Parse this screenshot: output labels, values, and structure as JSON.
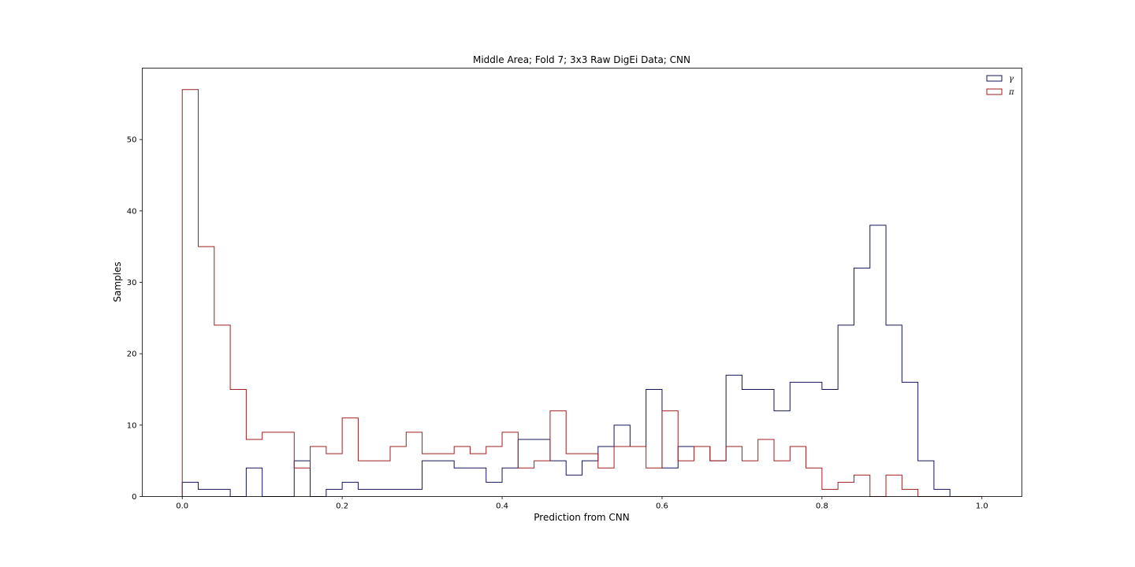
{
  "chart_data": {
    "type": "histogram",
    "title": "Middle Area; Fold 7; 3x3 Raw DigEi Data; CNN",
    "xlabel": "Prediction from CNN",
    "ylabel": "Samples",
    "xlim": [
      -0.05,
      1.05
    ],
    "ylim": [
      0,
      60
    ],
    "xticks": [
      0.0,
      0.2,
      0.4,
      0.6,
      0.8,
      1.0
    ],
    "xtick_labels": [
      "0.0",
      "0.2",
      "0.4",
      "0.6",
      "0.8",
      "1.0"
    ],
    "yticks": [
      0,
      10,
      20,
      30,
      40,
      50
    ],
    "ytick_labels": [
      "0",
      "10",
      "20",
      "30",
      "40",
      "50"
    ],
    "bins": {
      "start": 0.0,
      "width": 0.02,
      "count": 50
    },
    "grid": false,
    "legend_position": "top-right",
    "series": [
      {
        "name": "γ",
        "color": "#14145a",
        "values": [
          2,
          1,
          1,
          0,
          4,
          0,
          0,
          5,
          0,
          1,
          2,
          1,
          1,
          1,
          1,
          5,
          5,
          4,
          4,
          2,
          4,
          8,
          8,
          5,
          3,
          5,
          7,
          10,
          7,
          15,
          4,
          7,
          7,
          5,
          17,
          15,
          15,
          12,
          16,
          16,
          15,
          24,
          32,
          38,
          24,
          16,
          5,
          1,
          0,
          0
        ]
      },
      {
        "name": "π",
        "color": "#a01e1e",
        "values": [
          57,
          35,
          24,
          15,
          8,
          9,
          9,
          4,
          7,
          6,
          11,
          5,
          5,
          7,
          9,
          6,
          6,
          7,
          6,
          7,
          9,
          4,
          5,
          12,
          6,
          6,
          4,
          7,
          7,
          4,
          12,
          5,
          7,
          5,
          7,
          5,
          8,
          5,
          7,
          4,
          1,
          2,
          3,
          0,
          3,
          1,
          0,
          0,
          0,
          0
        ]
      }
    ]
  }
}
